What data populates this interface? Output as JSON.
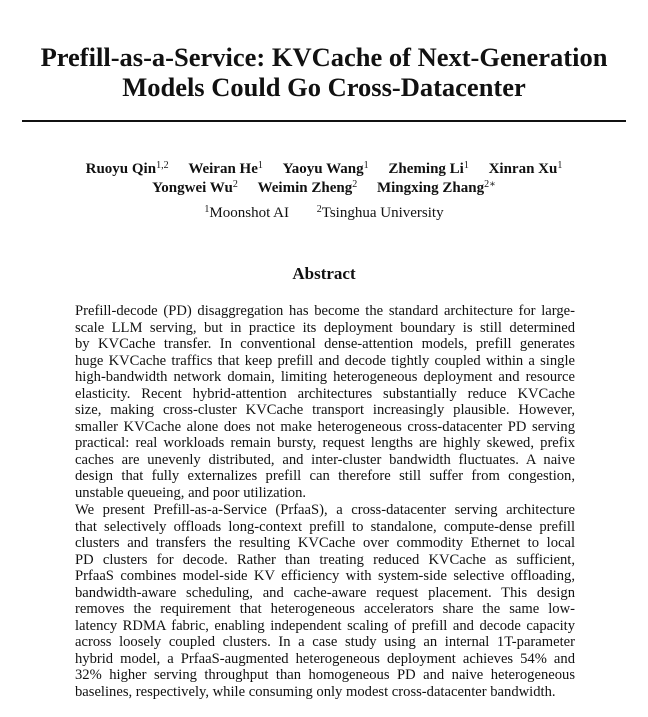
{
  "title": {
    "line1": "Prefill-as-a-Service: KVCache of Next-Generation",
    "line2": "Models Could Go Cross-Datacenter"
  },
  "authors": [
    {
      "name": "Ruoyu Qin",
      "aff": "1,2"
    },
    {
      "name": "Weiran He",
      "aff": "1"
    },
    {
      "name": "Yaoyu Wang",
      "aff": "1"
    },
    {
      "name": "Zheming Li",
      "aff": "1"
    },
    {
      "name": "Xinran Xu",
      "aff": "1"
    },
    {
      "name": "Yongwei Wu",
      "aff": "2"
    },
    {
      "name": "Weimin Zheng",
      "aff": "2"
    },
    {
      "name": "Mingxing Zhang",
      "aff": "2∗"
    }
  ],
  "affiliations": [
    {
      "mark": "1",
      "name": "Moonshot AI"
    },
    {
      "mark": "2",
      "name": "Tsinghua University"
    }
  ],
  "abstract": {
    "heading": "Abstract",
    "paragraphs": [
      [
        "Prefill-decode (PD) disaggregation has become the standard architecture for large-",
        "scale LLM serving, but in practice its deployment boundary is still determined",
        "by KVCache transfer.  In conventional dense-attention models, prefill generates",
        "huge KVCache traffics that keep prefill and decode tightly coupled within a single",
        "high-bandwidth network domain, limiting heterogeneous deployment and resource",
        "elasticity.  Recent hybrid-attention architectures substantially reduce KVCache",
        "size, making cross-cluster KVCache transport increasingly plausible.  However,",
        "smaller KVCache alone does not make heterogeneous cross-datacenter PD serving",
        "practical: real workloads remain bursty, request lengths are highly skewed, prefix",
        "caches are unevenly distributed, and inter-cluster bandwidth fluctuates.  A naive",
        "design that fully externalizes prefill can therefore still suffer from congestion,",
        "unstable queueing, and poor utilization."
      ],
      [
        "We present Prefill-as-a-Service (PrfaaS), a cross-datacenter serving architecture",
        "that selectively offloads long-context prefill to standalone, compute-dense prefill",
        "clusters and transfers the resulting KVCache over commodity Ethernet to local",
        "PD clusters for decode.  Rather than treating reduced KVCache as sufficient,",
        "PrfaaS combines model-side KV efficiency with system-side selective offloading,",
        "bandwidth-aware scheduling, and cache-aware request placement.  This design",
        "removes the requirement that heterogeneous accelerators share the same low-",
        "latency RDMA fabric, enabling independent scaling of prefill and decode capacity",
        "across loosely coupled clusters.  In a case study using an internal 1T-parameter",
        "hybrid model, a PrfaaS-augmented heterogeneous deployment achieves 54% and",
        "32% higher serving throughput than homogeneous PD and naive heterogeneous",
        "baselines, respectively, while consuming only modest cross-datacenter bandwidth."
      ]
    ]
  }
}
